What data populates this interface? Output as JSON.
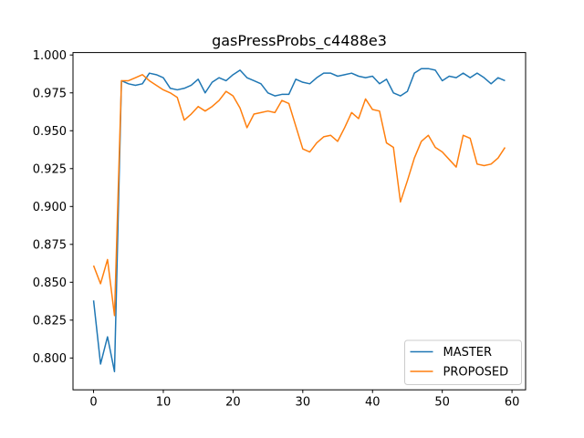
{
  "chart_data": {
    "type": "line",
    "title": "gasPressProbs_c4488e3",
    "xlabel": "",
    "ylabel": "",
    "grid": false,
    "xlim": [
      -2.95,
      61.95
    ],
    "ylim": [
      0.779,
      1.0016
    ],
    "x_ticks": [
      "0",
      "10",
      "20",
      "30",
      "40",
      "50",
      "60"
    ],
    "x_tick_values": [
      0,
      10,
      20,
      30,
      40,
      50,
      60
    ],
    "y_ticks": [
      "1.000",
      "0.975",
      "0.950",
      "0.925",
      "0.900",
      "0.875",
      "0.850",
      "0.825",
      "0.800"
    ],
    "y_tick_values": [
      1.0,
      0.975,
      0.95,
      0.925,
      0.9,
      0.875,
      0.85,
      0.825,
      0.8
    ],
    "x": [
      0,
      1,
      2,
      3,
      4,
      5,
      6,
      7,
      8,
      9,
      10,
      11,
      12,
      13,
      14,
      15,
      16,
      17,
      18,
      19,
      20,
      21,
      22,
      23,
      24,
      25,
      26,
      27,
      28,
      29,
      30,
      31,
      32,
      33,
      34,
      35,
      36,
      37,
      38,
      39,
      40,
      41,
      42,
      43,
      44,
      45,
      46,
      47,
      48,
      49,
      50,
      51,
      52,
      53,
      54,
      55,
      56,
      57,
      58,
      59
    ],
    "series": [
      {
        "name": "MASTER",
        "color": "#1f77b4",
        "values": [
          0.838,
          0.796,
          0.814,
          0.791,
          0.983,
          0.981,
          0.98,
          0.981,
          0.988,
          0.987,
          0.985,
          0.978,
          0.977,
          0.978,
          0.98,
          0.984,
          0.975,
          0.982,
          0.985,
          0.983,
          0.987,
          0.99,
          0.985,
          0.983,
          0.981,
          0.975,
          0.973,
          0.974,
          0.974,
          0.984,
          0.982,
          0.981,
          0.985,
          0.988,
          0.988,
          0.986,
          0.987,
          0.988,
          0.986,
          0.985,
          0.986,
          0.981,
          0.984,
          0.975,
          0.973,
          0.976,
          0.988,
          0.991,
          0.991,
          0.99,
          0.983,
          0.986,
          0.985,
          0.988,
          0.985,
          0.988,
          0.985,
          0.981,
          0.985,
          0.983
        ]
      },
      {
        "name": "PROPOSED",
        "color": "#ff7f0e",
        "values": [
          0.861,
          0.849,
          0.865,
          0.828,
          0.983,
          0.983,
          0.985,
          0.987,
          0.983,
          0.98,
          0.977,
          0.975,
          0.972,
          0.957,
          0.961,
          0.966,
          0.963,
          0.966,
          0.97,
          0.976,
          0.973,
          0.965,
          0.952,
          0.961,
          0.962,
          0.963,
          0.962,
          0.97,
          0.968,
          0.953,
          0.938,
          0.936,
          0.942,
          0.946,
          0.947,
          0.943,
          0.952,
          0.962,
          0.958,
          0.971,
          0.964,
          0.963,
          0.942,
          0.939,
          0.903,
          0.917,
          0.932,
          0.943,
          0.947,
          0.939,
          0.936,
          0.931,
          0.926,
          0.947,
          0.945,
          0.928,
          0.927,
          0.928,
          0.932,
          0.939
        ]
      }
    ],
    "legend": {
      "position": "lower right",
      "border_color": "#cccccc",
      "background": "#ffffff",
      "entries": [
        "MASTER",
        "PROPOSED"
      ]
    }
  }
}
